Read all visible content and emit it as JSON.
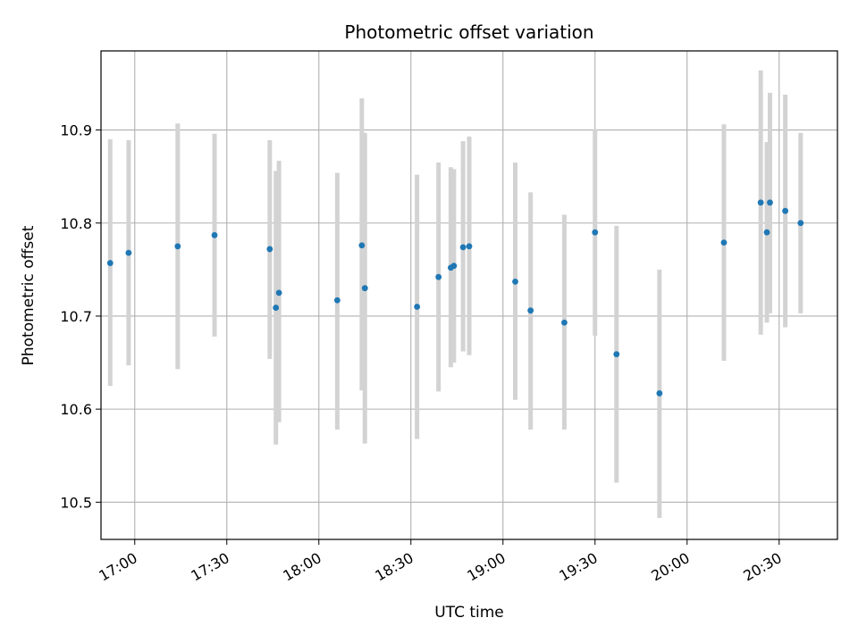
{
  "chart_data": {
    "type": "scatter",
    "title": "Photometric offset variation",
    "xlabel": "UTC time",
    "ylabel": "Photometric offset",
    "xlim": [
      "16:49",
      "20:49"
    ],
    "ylim": [
      10.46,
      10.985
    ],
    "grid": true,
    "colors": {
      "marker": "#1f77b4",
      "errorbar": "#d3d3d3",
      "grid": "#b0b0b0"
    },
    "x_ticks": [
      "17:00",
      "17:30",
      "18:00",
      "18:30",
      "19:00",
      "19:30",
      "20:00",
      "20:30"
    ],
    "y_ticks": [
      "10.5",
      "10.6",
      "10.7",
      "10.8",
      "10.9"
    ],
    "points": [
      {
        "x": "16:52",
        "y": 10.757,
        "yerr_low": 10.625,
        "yerr_high": 10.89
      },
      {
        "x": "16:58",
        "y": 10.768,
        "yerr_low": 10.647,
        "yerr_high": 10.889
      },
      {
        "x": "17:14",
        "y": 10.775,
        "yerr_low": 10.643,
        "yerr_high": 10.907
      },
      {
        "x": "17:26",
        "y": 10.787,
        "yerr_low": 10.678,
        "yerr_high": 10.896
      },
      {
        "x": "17:44",
        "y": 10.772,
        "yerr_low": 10.654,
        "yerr_high": 10.889
      },
      {
        "x": "17:46",
        "y": 10.709,
        "yerr_low": 10.562,
        "yerr_high": 10.856
      },
      {
        "x": "17:47",
        "y": 10.725,
        "yerr_low": 10.586,
        "yerr_high": 10.867
      },
      {
        "x": "18:06",
        "y": 10.717,
        "yerr_low": 10.578,
        "yerr_high": 10.854
      },
      {
        "x": "18:14",
        "y": 10.776,
        "yerr_low": 10.62,
        "yerr_high": 10.934
      },
      {
        "x": "18:15",
        "y": 10.73,
        "yerr_low": 10.563,
        "yerr_high": 10.897
      },
      {
        "x": "18:32",
        "y": 10.71,
        "yerr_low": 10.568,
        "yerr_high": 10.852
      },
      {
        "x": "18:39",
        "y": 10.742,
        "yerr_low": 10.619,
        "yerr_high": 10.865
      },
      {
        "x": "18:43",
        "y": 10.752,
        "yerr_low": 10.645,
        "yerr_high": 10.86
      },
      {
        "x": "18:44",
        "y": 10.754,
        "yerr_low": 10.65,
        "yerr_high": 10.858
      },
      {
        "x": "18:47",
        "y": 10.774,
        "yerr_low": 10.662,
        "yerr_high": 10.888
      },
      {
        "x": "18:49",
        "y": 10.775,
        "yerr_low": 10.658,
        "yerr_high": 10.893
      },
      {
        "x": "19:04",
        "y": 10.737,
        "yerr_low": 10.61,
        "yerr_high": 10.865
      },
      {
        "x": "19:09",
        "y": 10.706,
        "yerr_low": 10.578,
        "yerr_high": 10.833
      },
      {
        "x": "19:20",
        "y": 10.693,
        "yerr_low": 10.578,
        "yerr_high": 10.809
      },
      {
        "x": "19:30",
        "y": 10.79,
        "yerr_low": 10.679,
        "yerr_high": 10.901
      },
      {
        "x": "19:37",
        "y": 10.659,
        "yerr_low": 10.521,
        "yerr_high": 10.797
      },
      {
        "x": "19:51",
        "y": 10.617,
        "yerr_low": 10.483,
        "yerr_high": 10.75
      },
      {
        "x": "20:12",
        "y": 10.779,
        "yerr_low": 10.652,
        "yerr_high": 10.906
      },
      {
        "x": "20:24",
        "y": 10.822,
        "yerr_low": 10.68,
        "yerr_high": 10.964
      },
      {
        "x": "20:26",
        "y": 10.79,
        "yerr_low": 10.693,
        "yerr_high": 10.887
      },
      {
        "x": "20:27",
        "y": 10.822,
        "yerr_low": 10.703,
        "yerr_high": 10.94
      },
      {
        "x": "20:32",
        "y": 10.813,
        "yerr_low": 10.688,
        "yerr_high": 10.938
      },
      {
        "x": "20:37",
        "y": 10.8,
        "yerr_low": 10.703,
        "yerr_high": 10.897
      }
    ]
  }
}
